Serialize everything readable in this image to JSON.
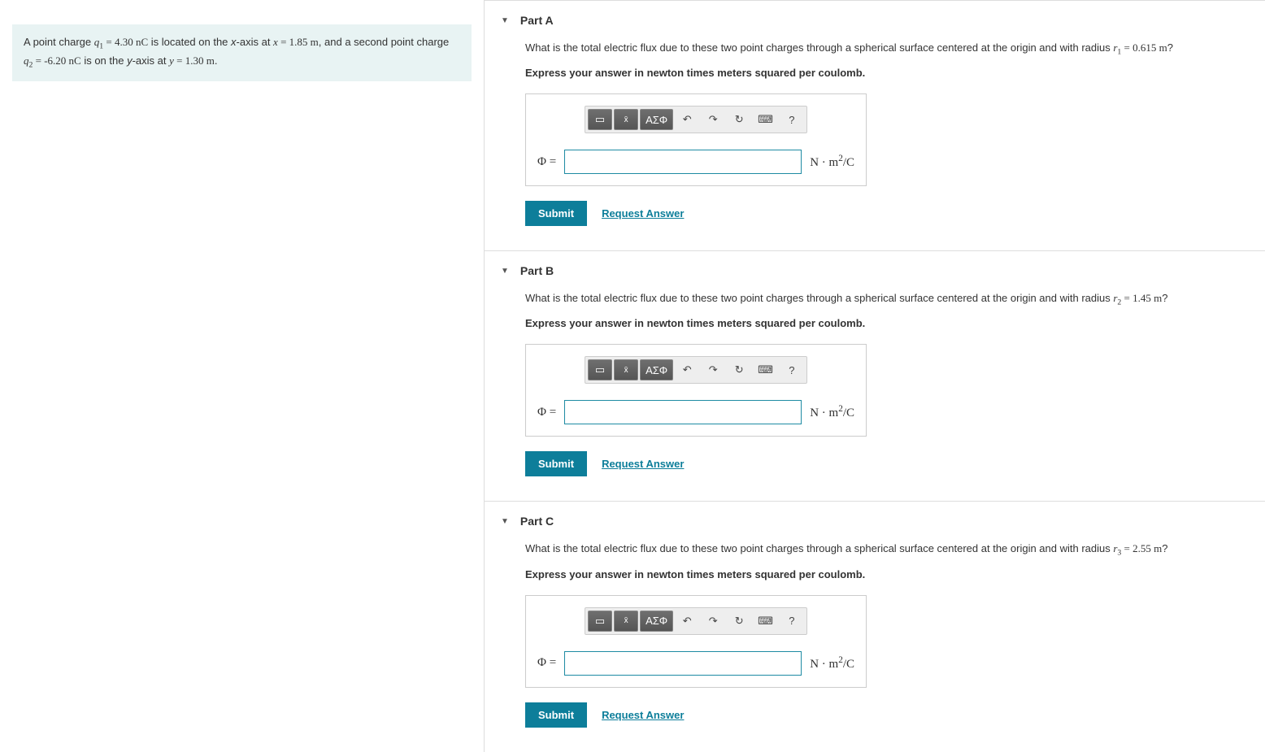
{
  "problem": {
    "text_pre": "A point charge ",
    "q1_sym": "q",
    "q1_sub": "1",
    "q1_eq": " = 4.30 ",
    "q1_unit": "nC",
    "mid1": " is located on the ",
    "xaxis": "x",
    "mid2": "-axis at ",
    "xvar": "x",
    "xeq": " = 1.85 ",
    "xunit": "m",
    "mid3": ", and a second point charge ",
    "q2_sym": "q",
    "q2_sub": "2",
    "q2_eq": " = -6.20 ",
    "q2_unit": "nC",
    "mid4": " is on the ",
    "yaxis": "y",
    "mid5": "-axis at ",
    "yvar": "y",
    "yeq": " = 1.30 ",
    "yunit": "m",
    "end": "."
  },
  "parts": {
    "a": {
      "title": "Part A",
      "q_pre": "What is the total electric flux due to these two point charges through a spherical surface centered at the origin and with radius ",
      "r_sym": "r",
      "r_sub": "1",
      "r_eq": " = 0.615 ",
      "r_unit": "m",
      "q_end": "?",
      "instruct": "Express your answer in newton times meters squared per coulomb."
    },
    "b": {
      "title": "Part B",
      "q_pre": "What is the total electric flux due to these two point charges through a spherical surface centered at the origin and with radius ",
      "r_sym": "r",
      "r_sub": "2",
      "r_eq": " = 1.45 ",
      "r_unit": "m",
      "q_end": "?",
      "instruct": "Express your answer in newton times meters squared per coulomb."
    },
    "c": {
      "title": "Part C",
      "q_pre": "What is the total electric flux due to these two point charges through a spherical surface centered at the origin and with radius ",
      "r_sym": "r",
      "r_sub": "3",
      "r_eq": " = 2.55 ",
      "r_unit": "m",
      "q_end": "?",
      "instruct": "Express your answer in newton times meters squared per coulomb."
    }
  },
  "answer_common": {
    "phi_label": "Φ =",
    "unit_pre": "N · m",
    "unit_sup": "2",
    "unit_post": "/C",
    "submit": "Submit",
    "request": "Request Answer",
    "greek_btn": "ΑΣΦ",
    "help_btn": "?"
  },
  "colors": {
    "problem_bg": "#e8f3f3",
    "accent": "#0d7e9a",
    "input_border": "#1e8ba3",
    "tb_dark": "#555555",
    "border": "#dddddd"
  }
}
